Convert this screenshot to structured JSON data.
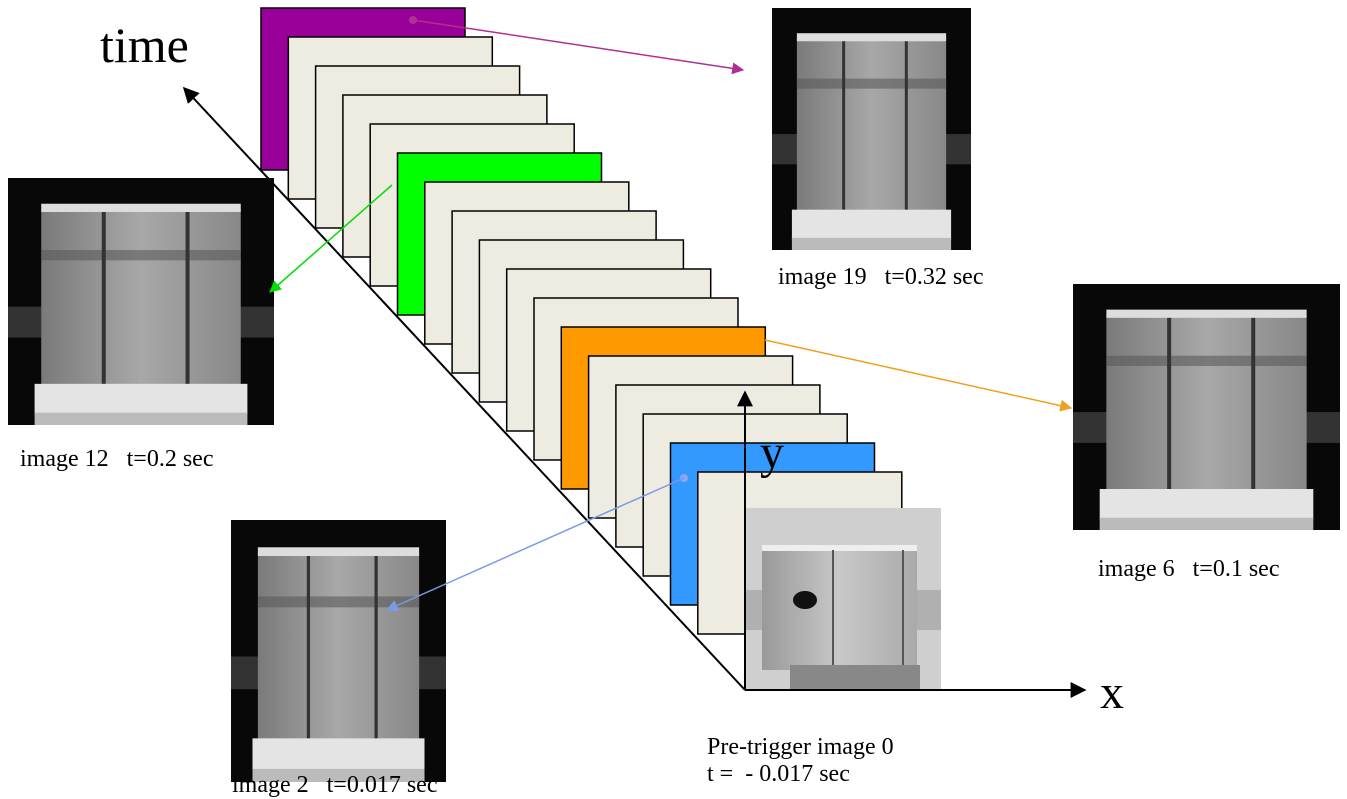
{
  "axes": {
    "time": "time",
    "y": "y",
    "x": "x"
  },
  "images": [
    {
      "label": "image 19   t=0.32 sec"
    },
    {
      "label": "image 12   t=0.2 sec"
    },
    {
      "label": "image 6   t=0.1 sec"
    },
    {
      "label": "image 2   t=0.017 sec"
    }
  ],
  "pretrigger": {
    "label": "Pre-trigger image 0",
    "time": "t =  - 0.017 sec"
  }
}
